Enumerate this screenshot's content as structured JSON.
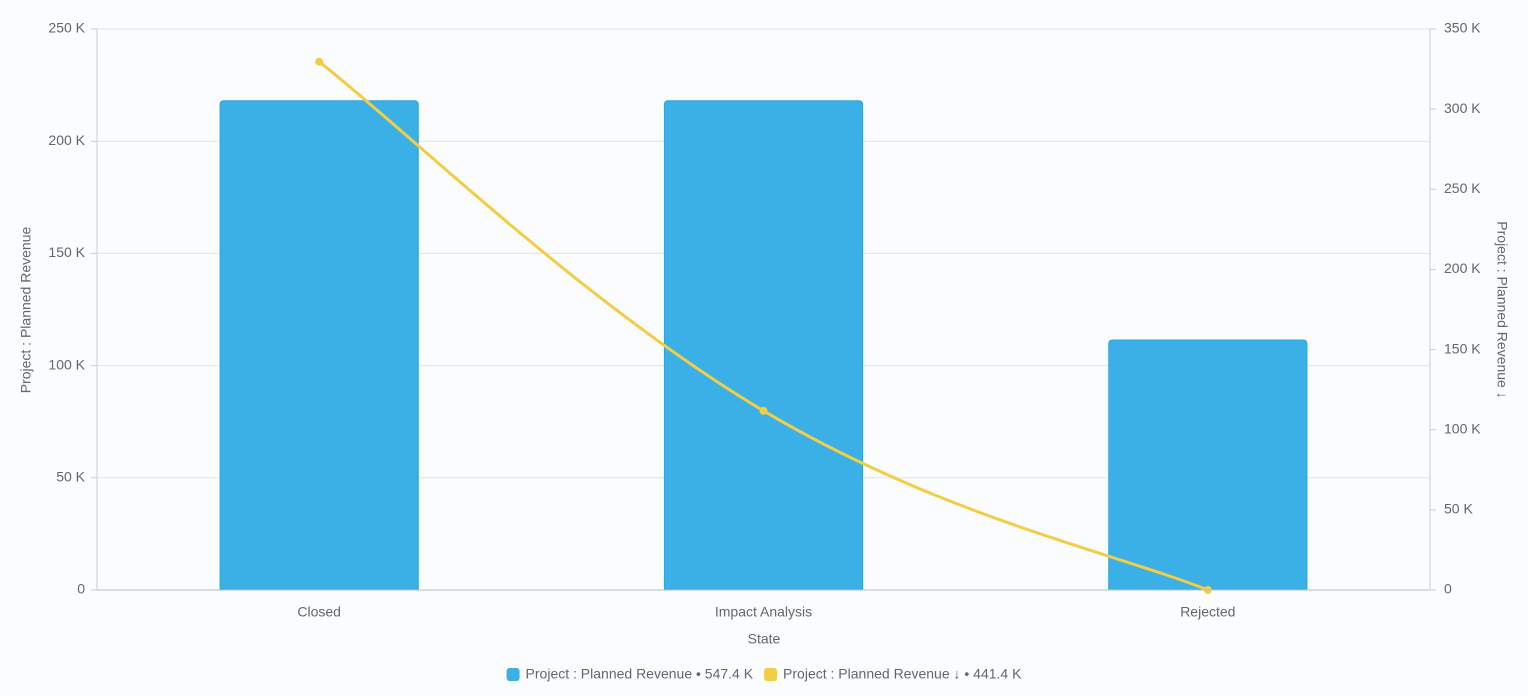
{
  "chart_data": {
    "type": "combo",
    "x_label": "State",
    "y_label": "Project : Planned Revenue",
    "y2_label": "Project : Planned Revenue ↓",
    "categories": [
      "Closed",
      "Impact Analysis",
      "Rejected"
    ],
    "series": [
      {
        "name": "Project : Planned Revenue • 547.4 K",
        "type": "bar",
        "color": "#3ab0e6",
        "values": [
          218000,
          218000,
          111400
        ]
      },
      {
        "name": "Project : Planned Revenue ↓ • 441.4 K",
        "type": "line",
        "axis": "y2",
        "color": "#f2cd45",
        "values": [
          329600,
          111800,
          0
        ]
      }
    ],
    "ylim": [
      0,
      250000
    ],
    "yticks": [
      {
        "value": 0,
        "label": "0"
      },
      {
        "value": 50000,
        "label": "50 K"
      },
      {
        "value": 100000,
        "label": "100 K"
      },
      {
        "value": 150000,
        "label": "150 K"
      },
      {
        "value": 200000,
        "label": "200 K"
      },
      {
        "value": 250000,
        "label": "250 K"
      }
    ],
    "y2lim": [
      0,
      350000
    ],
    "y2ticks": [
      {
        "value": 0,
        "label": "0"
      },
      {
        "value": 50000,
        "label": "50 K"
      },
      {
        "value": 100000,
        "label": "100 K"
      },
      {
        "value": 150000,
        "label": "150 K"
      },
      {
        "value": 200000,
        "label": "200 K"
      },
      {
        "value": 250000,
        "label": "250 K"
      },
      {
        "value": 300000,
        "label": "300 K"
      },
      {
        "value": 350000,
        "label": "350 K"
      }
    ],
    "grid": true
  }
}
